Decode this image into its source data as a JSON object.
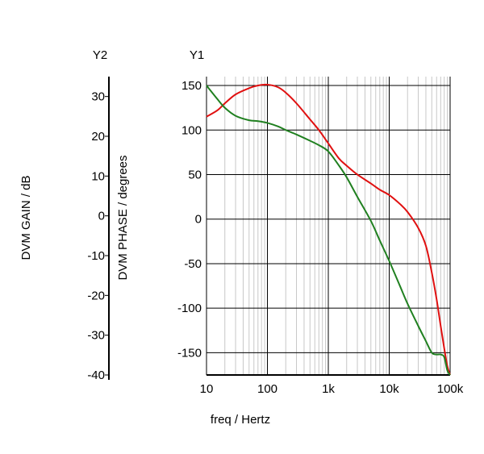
{
  "chart_data": {
    "type": "line",
    "xlabel": "freq / Hertz",
    "x_scale": "log",
    "xlim": [
      10,
      100000
    ],
    "x_ticks": [
      10,
      100,
      1000,
      10000,
      100000
    ],
    "x_tick_labels": [
      "10",
      "100",
      "1k",
      "10k",
      "100k"
    ],
    "y1": {
      "axis_name": "Y1",
      "label": "DVM PHASE / degrees",
      "ylim": [
        -175,
        160
      ],
      "ticks": [
        150,
        100,
        50,
        0,
        -50,
        -100,
        -150
      ],
      "tick_labels": [
        "150",
        "100",
        "50",
        "0",
        "-50",
        "-100",
        "-150"
      ]
    },
    "y2": {
      "axis_name": "Y2",
      "label": "DVM GAIN / dB",
      "ylim": [
        -40,
        35
      ],
      "ticks": [
        30,
        20,
        10,
        0,
        -10,
        -20,
        -30,
        -40
      ],
      "tick_labels": [
        "30",
        "20",
        "10",
        "0",
        "-10",
        "-20",
        "-30",
        "-40"
      ]
    },
    "grid": true,
    "series": [
      {
        "axis": "y1",
        "color": "#e01010",
        "x": [
          10,
          15,
          20,
          30,
          50,
          70,
          100,
          150,
          200,
          300,
          500,
          700,
          1000,
          1500,
          2000,
          3000,
          5000,
          7000,
          10000,
          15000,
          20000,
          30000,
          40000,
          50000,
          60000,
          70000,
          80000,
          90000,
          100000
        ],
        "y": [
          115,
          122,
          130,
          140,
          147,
          150,
          151,
          148,
          142,
          130,
          112,
          100,
          85,
          68,
          60,
          50,
          40,
          33,
          27,
          17,
          8,
          -10,
          -30,
          -60,
          -90,
          -120,
          -145,
          -165,
          -175
        ]
      },
      {
        "axis": "y1",
        "color": "#208020",
        "x": [
          10,
          15,
          20,
          30,
          50,
          70,
          100,
          150,
          200,
          300,
          500,
          700,
          1000,
          1500,
          2000,
          3000,
          5000,
          7000,
          10000,
          15000,
          20000,
          30000,
          40000,
          50000,
          60000,
          70000,
          80000,
          90000,
          100000
        ],
        "y": [
          150,
          135,
          125,
          116,
          111,
          110,
          108,
          104,
          100,
          95,
          88,
          83,
          76,
          60,
          47,
          25,
          -2,
          -24,
          -47,
          -75,
          -95,
          -120,
          -137,
          -150,
          -152,
          -152,
          -155,
          -170,
          -175
        ]
      }
    ]
  }
}
